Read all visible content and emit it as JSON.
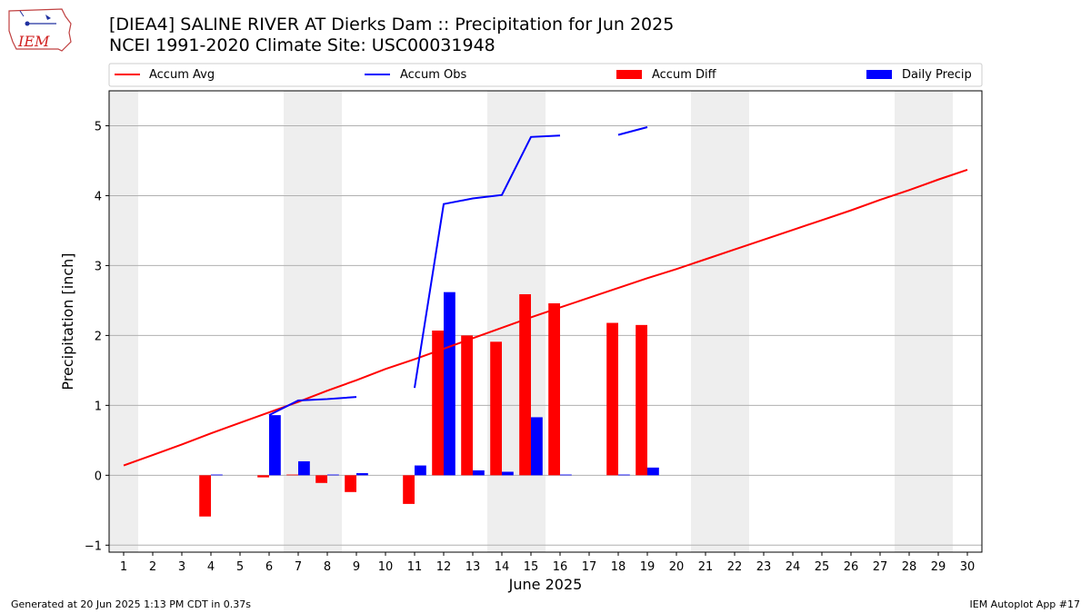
{
  "header": {
    "title_line1": "[DIEA4] SALINE RIVER  AT Dierks Dam :: Precipitation for Jun 2025",
    "title_line2": "NCEI 1991-2020 Climate Site: USC00031948",
    "logo_text": "IEM"
  },
  "footer": {
    "left": "Generated at 20 Jun 2025 1:13 PM CDT in 0.37s",
    "right": "IEM Autoplot App #17"
  },
  "colors": {
    "accum_avg": "#ff0000",
    "accum_obs": "#0000ff",
    "accum_diff": "#ff0000",
    "daily_precip": "#0000ff",
    "weekend_shade": "#eeeeee",
    "grid": "#b0b0b0"
  },
  "chart_data": {
    "type": "bar",
    "xlabel": "June 2025",
    "ylabel": "Precipitation [inch]",
    "xlim": [
      0.5,
      30.5
    ],
    "ylim": [
      -1.1,
      5.5
    ],
    "yticks": [
      -1,
      0,
      1,
      2,
      3,
      4,
      5
    ],
    "xticks": [
      1,
      2,
      3,
      4,
      5,
      6,
      7,
      8,
      9,
      10,
      11,
      12,
      13,
      14,
      15,
      16,
      17,
      18,
      19,
      20,
      21,
      22,
      23,
      24,
      25,
      26,
      27,
      28,
      29,
      30
    ],
    "grid": "horizontal",
    "legend_placement": "top, above plot",
    "shaded_days": [
      [
        0.5,
        1.5
      ],
      [
        6.5,
        8.5
      ],
      [
        13.5,
        15.5
      ],
      [
        20.5,
        22.5
      ],
      [
        27.5,
        29.5
      ]
    ],
    "legend": [
      "Accum Avg",
      "Accum Obs",
      "Accum Diff",
      "Daily Precip"
    ],
    "accum_avg": {
      "name": "Accum Avg",
      "x": [
        1,
        2,
        3,
        4,
        5,
        6,
        7,
        8,
        9,
        10,
        11,
        12,
        13,
        14,
        15,
        16,
        17,
        18,
        19,
        20,
        21,
        22,
        23,
        24,
        25,
        26,
        27,
        28,
        29,
        30
      ],
      "values": [
        0.14,
        0.29,
        0.44,
        0.6,
        0.75,
        0.9,
        1.05,
        1.21,
        1.36,
        1.52,
        1.66,
        1.81,
        1.96,
        2.11,
        2.26,
        2.4,
        2.54,
        2.68,
        2.82,
        2.95,
        3.09,
        3.23,
        3.37,
        3.51,
        3.65,
        3.79,
        3.94,
        4.08,
        4.23,
        4.37
      ]
    },
    "accum_obs": {
      "name": "Accum Obs",
      "segments": [
        {
          "x": [
            6,
            7,
            8,
            9
          ],
          "values": [
            0.86,
            1.07,
            1.09,
            1.12
          ]
        },
        {
          "x": [
            11,
            12,
            13,
            14,
            15,
            16
          ],
          "values": [
            1.25,
            3.88,
            3.96,
            4.01,
            4.84,
            4.86
          ]
        },
        {
          "x": [
            18,
            19
          ],
          "values": [
            4.87,
            4.98
          ]
        }
      ]
    },
    "accum_diff": {
      "name": "Accum Diff",
      "x": [
        4,
        6,
        7,
        8,
        9,
        11,
        12,
        13,
        14,
        15,
        16,
        18,
        19
      ],
      "values": [
        -0.59,
        -0.03,
        0.01,
        -0.11,
        -0.24,
        -0.41,
        2.07,
        2.0,
        1.91,
        2.59,
        2.46,
        2.18,
        2.15
      ]
    },
    "daily_precip": {
      "name": "Daily Precip",
      "x": [
        4,
        6,
        7,
        8,
        9,
        11,
        12,
        13,
        14,
        15,
        16,
        18,
        19
      ],
      "values": [
        0.01,
        0.86,
        0.2,
        0.01,
        0.03,
        0.14,
        2.62,
        0.07,
        0.05,
        0.83,
        0.01,
        0.01,
        0.11
      ]
    }
  }
}
